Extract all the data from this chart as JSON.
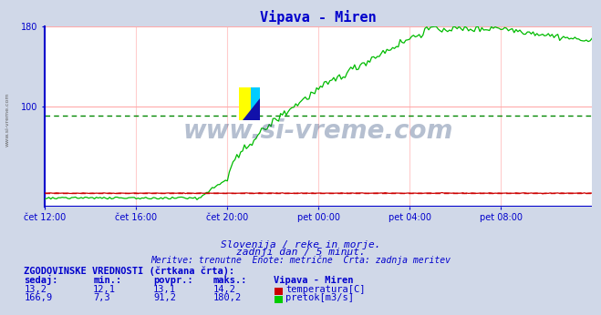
{
  "title": "Vipava - Miren",
  "title_color": "#0000cc",
  "background_color": "#d0d8e8",
  "plot_bg_color": "#ffffff",
  "grid_color": "#ffaaaa",
  "grid_vcolor": "#ffcccc",
  "x_min": 0,
  "x_max": 288,
  "y_min": 0,
  "y_max": 180,
  "yticks": [
    100,
    180
  ],
  "xtick_labels": [
    "čet 12:00",
    "čet 16:00",
    "čet 20:00",
    "pet 00:00",
    "pet 04:00",
    "pet 08:00"
  ],
  "xtick_positions": [
    0,
    48,
    96,
    144,
    192,
    240
  ],
  "temp_avg": 13.1,
  "flow_avg": 91.2,
  "temp_dashed_color": "#cc0000",
  "flow_dashed_color": "#008800",
  "temp_line_color": "#cc0000",
  "flow_line_color": "#00bb00",
  "axis_color": "#0000cc",
  "blue_line_color": "#0000cc",
  "watermark": "www.si-vreme.com",
  "watermark_color": "#1a3a6e",
  "side_text": "www.si-vreme.com",
  "subtitle1": "Slovenija / reke in morje.",
  "subtitle2": "zadnji dan / 5 minut.",
  "subtitle3": "Meritve: trenutne  Enote: metrične  Črta: zadnja meritev",
  "legend_title": "ZGODOVINSKE VREDNOSTI (črtkana črta):",
  "legend_cols": [
    "sedaj:",
    "min.:",
    "povpr.:",
    "maks.:",
    "Vipava - Miren"
  ],
  "legend_row1": [
    "13,2",
    "12,1",
    "13,1",
    "14,2",
    "temperatura[C]"
  ],
  "legend_row2": [
    "166,9",
    "7,3",
    "91,2",
    "180,2",
    "pretok[m3/s]"
  ],
  "temp_color_box": "#cc0000",
  "flow_color_box": "#00cc00"
}
